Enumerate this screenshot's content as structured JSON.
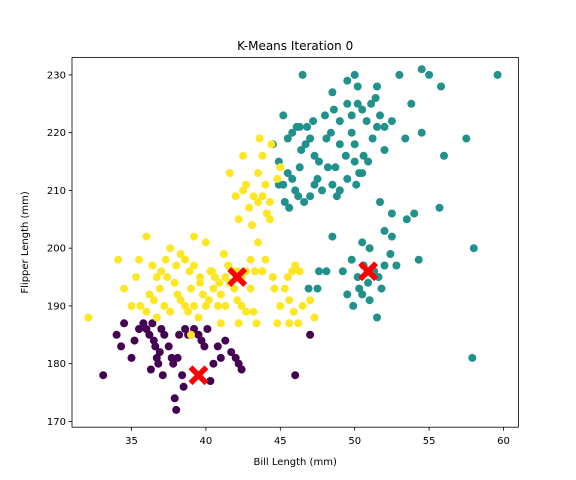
{
  "chart_data": {
    "type": "scatter",
    "title": "K-Means Iteration 0",
    "xlabel": "Bill Length (mm)",
    "ylabel": "Flipper Length (mm)",
    "xlim": [
      31,
      61
    ],
    "ylim": [
      169,
      233
    ],
    "xticks": [
      "35",
      "40",
      "45",
      "50",
      "55",
      "60"
    ],
    "xtick_values": [
      35,
      40,
      45,
      50,
      55,
      60
    ],
    "yticks": [
      "170",
      "180",
      "190",
      "200",
      "210",
      "220",
      "230"
    ],
    "ytick_values": [
      170,
      180,
      190,
      200,
      210,
      220,
      230
    ],
    "grid": false,
    "legend": "none",
    "colors": {
      "cluster_0": "#440154",
      "cluster_1": "#21918c",
      "cluster_2": "#fde725",
      "centroids": "#ff0000"
    },
    "series": [
      {
        "cluster": 0,
        "color": "#440154",
        "points": [
          [
            33.1,
            178
          ],
          [
            34.0,
            185
          ],
          [
            34.3,
            183
          ],
          [
            34.5,
            187
          ],
          [
            35.0,
            181
          ],
          [
            35.2,
            184
          ],
          [
            35.5,
            186
          ],
          [
            35.8,
            187
          ],
          [
            36.0,
            186
          ],
          [
            36.2,
            185
          ],
          [
            36.4,
            187
          ],
          [
            36.5,
            184
          ],
          [
            36.6,
            183
          ],
          [
            36.7,
            181
          ],
          [
            36.8,
            180
          ],
          [
            37.0,
            186
          ],
          [
            37.2,
            185
          ],
          [
            37.5,
            183
          ],
          [
            37.7,
            181
          ],
          [
            37.8,
            180
          ],
          [
            37.9,
            174
          ],
          [
            38.0,
            172
          ],
          [
            38.1,
            181
          ],
          [
            38.2,
            185
          ],
          [
            38.4,
            178
          ],
          [
            38.6,
            186
          ],
          [
            38.8,
            185
          ],
          [
            39.0,
            185
          ],
          [
            39.2,
            186
          ],
          [
            39.5,
            185
          ],
          [
            39.7,
            184
          ],
          [
            39.9,
            183
          ],
          [
            40.1,
            186
          ],
          [
            40.3,
            177
          ],
          [
            40.5,
            180
          ],
          [
            40.8,
            183
          ],
          [
            41.0,
            181
          ],
          [
            41.3,
            184
          ],
          [
            41.7,
            182
          ],
          [
            42.0,
            181
          ],
          [
            42.2,
            180
          ],
          [
            42.4,
            179
          ],
          [
            46.0,
            178
          ],
          [
            47.0,
            185
          ],
          [
            36.3,
            179
          ],
          [
            37.1,
            178
          ],
          [
            38.5,
            176
          ],
          [
            36.9,
            182
          ]
        ]
      },
      {
        "cluster": 1,
        "color": "#21918c",
        "points": [
          [
            46.5,
            230
          ],
          [
            48.5,
            227
          ],
          [
            49.5,
            229
          ],
          [
            50.0,
            230
          ],
          [
            50.2,
            228
          ],
          [
            51.5,
            228
          ],
          [
            53.0,
            230
          ],
          [
            54.5,
            231
          ],
          [
            55.0,
            230
          ],
          [
            55.8,
            228
          ],
          [
            59.6,
            230
          ],
          [
            45.2,
            223
          ],
          [
            46.3,
            221
          ],
          [
            46.8,
            221
          ],
          [
            47.2,
            222
          ],
          [
            48.0,
            223
          ],
          [
            48.6,
            224
          ],
          [
            49.0,
            222
          ],
          [
            49.5,
            225
          ],
          [
            49.8,
            223
          ],
          [
            50.2,
            225
          ],
          [
            50.5,
            224
          ],
          [
            50.8,
            222
          ],
          [
            51.1,
            225
          ],
          [
            51.4,
            226
          ],
          [
            51.7,
            223
          ],
          [
            52.0,
            221
          ],
          [
            45.5,
            219
          ],
          [
            45.8,
            220
          ],
          [
            46.1,
            221
          ],
          [
            46.4,
            217
          ],
          [
            46.7,
            218
          ],
          [
            47.0,
            219
          ],
          [
            47.3,
            216
          ],
          [
            47.6,
            215
          ],
          [
            48.1,
            219
          ],
          [
            48.4,
            220
          ],
          [
            48.7,
            214
          ],
          [
            49.0,
            218
          ],
          [
            49.4,
            216
          ],
          [
            49.8,
            220
          ],
          [
            50.0,
            218
          ],
          [
            50.3,
            213
          ],
          [
            50.6,
            216
          ],
          [
            50.9,
            215
          ],
          [
            51.2,
            219
          ],
          [
            51.5,
            221
          ],
          [
            52.0,
            217
          ],
          [
            52.5,
            222
          ],
          [
            53.4,
            219
          ],
          [
            44.5,
            218
          ],
          [
            44.9,
            215
          ],
          [
            45.2,
            211
          ],
          [
            45.5,
            213
          ],
          [
            45.8,
            212
          ],
          [
            46.0,
            210
          ],
          [
            46.3,
            214
          ],
          [
            46.6,
            208
          ],
          [
            47.0,
            209
          ],
          [
            47.5,
            212
          ],
          [
            47.8,
            210
          ],
          [
            48.2,
            214
          ],
          [
            48.5,
            211
          ],
          [
            49.0,
            210
          ],
          [
            49.5,
            212
          ],
          [
            50.0,
            215
          ],
          [
            50.5,
            213
          ],
          [
            44.9,
            211
          ],
          [
            45.3,
            208
          ],
          [
            45.6,
            207
          ],
          [
            46.2,
            209
          ],
          [
            47.3,
            211
          ],
          [
            48.8,
            209
          ],
          [
            50.1,
            211
          ],
          [
            51.7,
            208
          ],
          [
            52.5,
            206
          ],
          [
            53.5,
            205
          ],
          [
            54.0,
            206
          ],
          [
            55.7,
            207
          ],
          [
            58.0,
            200
          ],
          [
            54.3,
            198
          ],
          [
            52.0,
            203
          ],
          [
            52.5,
            202
          ],
          [
            51.0,
            200
          ],
          [
            50.5,
            201
          ],
          [
            49.8,
            198
          ],
          [
            50.2,
            195
          ],
          [
            50.6,
            197
          ],
          [
            50.9,
            194
          ],
          [
            51.3,
            196
          ],
          [
            51.6,
            195
          ],
          [
            52.0,
            197
          ],
          [
            52.4,
            199
          ],
          [
            52.8,
            197
          ],
          [
            49.5,
            192
          ],
          [
            49.9,
            190
          ],
          [
            50.3,
            193
          ],
          [
            51.0,
            191
          ],
          [
            51.5,
            188
          ],
          [
            48.1,
            196
          ],
          [
            47.5,
            193
          ],
          [
            48.5,
            202
          ],
          [
            57.9,
            181
          ],
          [
            49.2,
            196
          ],
          [
            50.5,
            192
          ],
          [
            51.8,
            193
          ],
          [
            46.9,
            193
          ],
          [
            47.6,
            196
          ],
          [
            53.8,
            225
          ],
          [
            54.5,
            220
          ],
          [
            56.0,
            216
          ],
          [
            57.5,
            219
          ]
        ]
      },
      {
        "cluster": 2,
        "color": "#fde725",
        "points": [
          [
            32.1,
            188
          ],
          [
            34.5,
            193
          ],
          [
            35.0,
            190
          ],
          [
            35.3,
            195
          ],
          [
            35.6,
            190
          ],
          [
            36.0,
            189
          ],
          [
            36.2,
            192
          ],
          [
            36.5,
            191
          ],
          [
            36.7,
            188
          ],
          [
            36.9,
            193
          ],
          [
            37.2,
            190
          ],
          [
            37.4,
            195
          ],
          [
            37.6,
            189
          ],
          [
            37.9,
            194
          ],
          [
            38.1,
            192
          ],
          [
            38.3,
            191
          ],
          [
            38.6,
            190
          ],
          [
            38.8,
            189
          ],
          [
            39.0,
            193
          ],
          [
            39.2,
            190
          ],
          [
            39.5,
            188
          ],
          [
            39.8,
            192
          ],
          [
            40.0,
            190
          ],
          [
            40.2,
            191
          ],
          [
            40.5,
            193
          ],
          [
            40.8,
            190
          ],
          [
            41.0,
            192
          ],
          [
            41.3,
            195
          ],
          [
            41.6,
            194
          ],
          [
            41.9,
            193
          ],
          [
            42.1,
            191
          ],
          [
            42.4,
            190
          ],
          [
            42.7,
            189
          ],
          [
            43.0,
            193
          ],
          [
            43.2,
            189
          ],
          [
            43.4,
            187
          ],
          [
            35.5,
            198
          ],
          [
            36.0,
            202
          ],
          [
            36.4,
            197
          ],
          [
            36.7,
            195
          ],
          [
            37.0,
            196
          ],
          [
            37.3,
            198
          ],
          [
            37.6,
            200
          ],
          [
            38.0,
            197
          ],
          [
            38.3,
            199
          ],
          [
            38.6,
            198
          ],
          [
            38.9,
            196
          ],
          [
            39.2,
            197
          ],
          [
            39.6,
            195
          ],
          [
            40.0,
            201
          ],
          [
            40.3,
            196
          ],
          [
            40.6,
            195
          ],
          [
            40.9,
            194
          ],
          [
            41.2,
            199
          ],
          [
            41.5,
            197
          ],
          [
            41.8,
            196
          ],
          [
            42.1,
            196
          ],
          [
            42.4,
            195
          ],
          [
            42.7,
            196
          ],
          [
            43.0,
            198
          ],
          [
            43.3,
            196
          ],
          [
            43.5,
            201
          ],
          [
            44.0,
            198
          ],
          [
            44.5,
            195
          ],
          [
            34.1,
            198
          ],
          [
            39.0,
            185
          ],
          [
            41.0,
            187
          ],
          [
            45.0,
            190
          ],
          [
            45.3,
            193
          ],
          [
            45.6,
            191
          ],
          [
            45.9,
            189
          ],
          [
            46.2,
            187
          ],
          [
            45.5,
            195
          ],
          [
            46.0,
            197
          ],
          [
            46.5,
            190
          ],
          [
            47.0,
            191
          ],
          [
            47.3,
            188
          ],
          [
            44.8,
            187
          ],
          [
            45.8,
            196
          ],
          [
            46.3,
            196
          ],
          [
            42.5,
            210
          ],
          [
            42.9,
            207
          ],
          [
            43.2,
            209
          ],
          [
            43.5,
            208
          ],
          [
            43.8,
            209
          ],
          [
            44.0,
            211
          ],
          [
            44.3,
            208
          ],
          [
            44.8,
            212
          ],
          [
            45.0,
            214
          ],
          [
            42.0,
            209
          ],
          [
            42.2,
            205
          ],
          [
            43.1,
            204
          ],
          [
            44.1,
            206
          ],
          [
            43.5,
            213
          ],
          [
            44.3,
            205
          ],
          [
            43.8,
            216
          ],
          [
            43.6,
            219
          ],
          [
            44.4,
            218
          ],
          [
            41.6,
            213
          ],
          [
            42.5,
            216
          ],
          [
            42.7,
            211
          ],
          [
            39.2,
            202
          ],
          [
            39.6,
            194
          ],
          [
            40.4,
            196
          ],
          [
            41.3,
            190
          ],
          [
            43.8,
            196
          ],
          [
            44.6,
            193
          ],
          [
            45.6,
            187
          ],
          [
            42.2,
            187
          ]
        ]
      }
    ],
    "centroids": [
      [
        39.5,
        178
      ],
      [
        42.1,
        195
      ],
      [
        50.9,
        196
      ]
    ]
  }
}
